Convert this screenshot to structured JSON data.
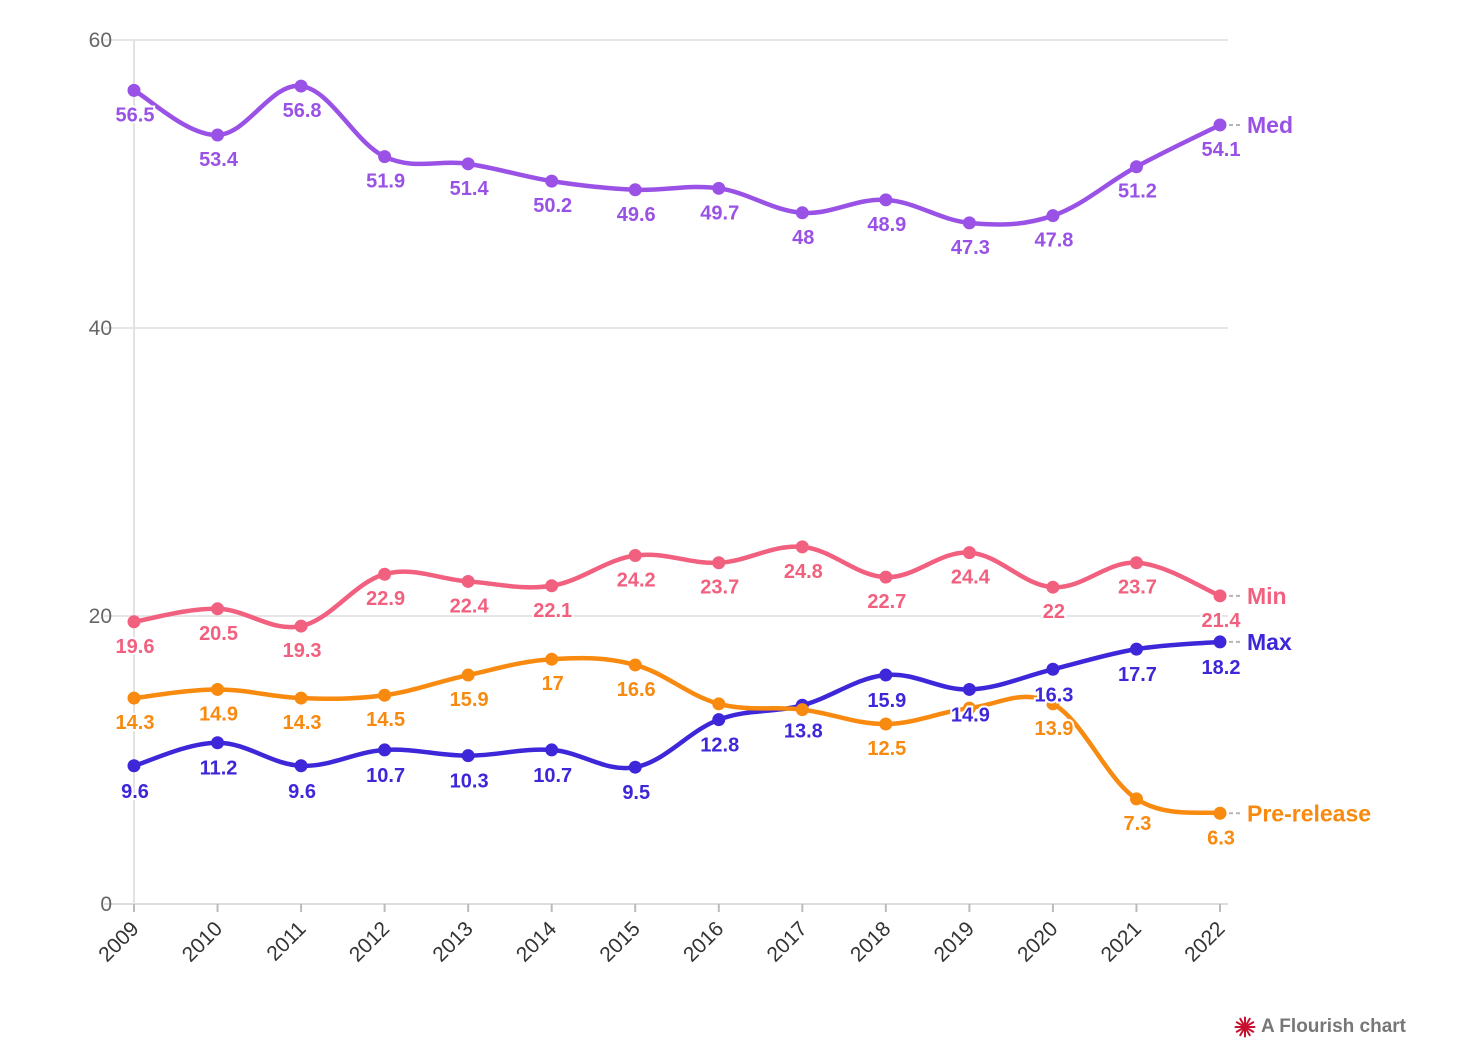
{
  "chart_data": {
    "type": "line",
    "title": "",
    "xlabel": "",
    "ylabel": "",
    "x": [
      "2009",
      "2010",
      "2011",
      "2012",
      "2013",
      "2014",
      "2015",
      "2016",
      "2017",
      "2018",
      "2019",
      "2020",
      "2021",
      "2022"
    ],
    "ylim": [
      0,
      60
    ],
    "yticks": [
      0,
      20,
      40,
      60
    ],
    "grid": true,
    "series": [
      {
        "name": "Med",
        "color": "#9a52e6",
        "values": [
          56.5,
          53.4,
          56.8,
          51.9,
          51.4,
          50.2,
          49.6,
          49.7,
          48,
          48.9,
          47.3,
          47.8,
          51.2,
          54.1
        ],
        "labels": [
          "56.5",
          "53.4",
          "56.8",
          "51.9",
          "51.4",
          "50.2",
          "49.6",
          "49.7",
          "48",
          "48.9",
          "47.3",
          "47.8",
          "51.2",
          "54.1"
        ]
      },
      {
        "name": "Min",
        "color": "#f2607f",
        "values": [
          19.6,
          20.5,
          19.3,
          22.9,
          22.4,
          22.1,
          24.2,
          23.7,
          24.8,
          22.7,
          24.4,
          22,
          23.7,
          21.4
        ],
        "labels": [
          "19.6",
          "20.5",
          "19.3",
          "22.9",
          "22.4",
          "22.1",
          "24.2",
          "23.7",
          "24.8",
          "22.7",
          "24.4",
          "22",
          "23.7",
          "21.4"
        ]
      },
      {
        "name": "Max",
        "color": "#3d27d9",
        "values": [
          9.6,
          11.2,
          9.6,
          10.7,
          10.3,
          10.7,
          9.5,
          12.8,
          13.8,
          15.9,
          14.9,
          16.3,
          17.7,
          18.2
        ],
        "labels": [
          "9.6",
          "11.2",
          "9.6",
          "10.7",
          "10.3",
          "10.7",
          "9.5",
          "12.8",
          "13.8",
          "15.9",
          "14.9",
          "16.3",
          "17.7",
          "18.2"
        ]
      },
      {
        "name": "Pre-release",
        "color": "#f78a0f",
        "values": [
          14.3,
          14.9,
          14.3,
          14.5,
          15.9,
          17,
          16.6,
          13.9,
          13.5,
          12.5,
          13.6,
          13.9,
          7.3,
          6.3
        ],
        "labels": [
          "14.3",
          "14.9",
          "14.3",
          "14.5",
          "15.9",
          "17",
          "16.6",
          "",
          "",
          "12.5",
          "",
          "13.9",
          "7.3",
          "6.3"
        ]
      }
    ]
  },
  "credit": {
    "text": "A Flourish chart",
    "icon": "flourish-logo-icon",
    "color": "#c8102e"
  }
}
